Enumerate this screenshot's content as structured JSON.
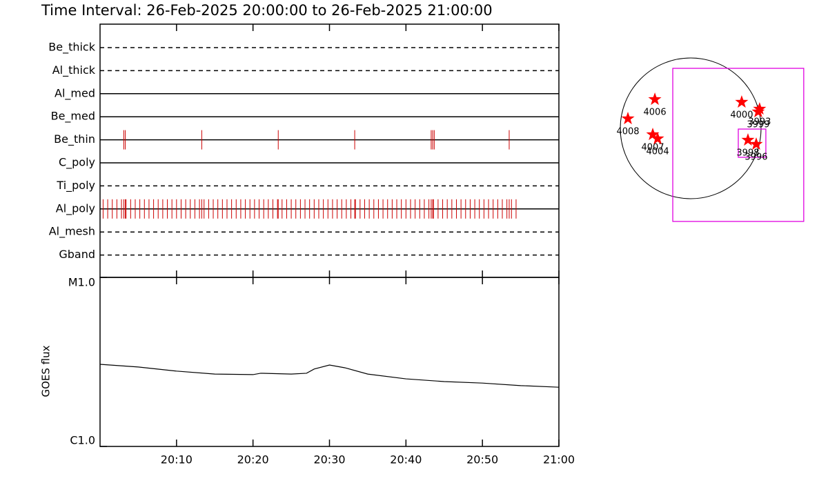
{
  "chart_data": [
    {
      "type": "timeline",
      "title": "Time Interval: 26-Feb-2025 20:00:00 to 26-Feb-2025 21:00:00",
      "xlim": [
        0,
        60
      ],
      "color": "#cc0000",
      "rows": [
        {
          "name": "Be_thick",
          "line_style": "dashed",
          "events": []
        },
        {
          "name": "Al_thick",
          "line_style": "dashed",
          "events": []
        },
        {
          "name": "Al_med",
          "line_style": "solid",
          "events": []
        },
        {
          "name": "Be_med",
          "line_style": "solid",
          "events": []
        },
        {
          "name": "Be_thin",
          "line_style": "solid",
          "events": [
            3.1,
            3.3,
            13.3,
            23.3,
            33.3,
            43.3,
            43.5,
            43.7,
            53.5
          ]
        },
        {
          "name": "C_poly",
          "line_style": "solid",
          "events": []
        },
        {
          "name": "Ti_poly",
          "line_style": "dashed",
          "events": []
        },
        {
          "name": "Al_poly",
          "line_style": "solid",
          "events": [
            0.4,
            1.0,
            1.6,
            2.2,
            2.8,
            3.1,
            3.3,
            3.4,
            4.0,
            4.6,
            5.2,
            5.8,
            6.4,
            7.0,
            7.6,
            8.2,
            8.8,
            9.4,
            10.0,
            10.6,
            11.2,
            11.8,
            12.4,
            13.0,
            13.3,
            13.6,
            14.2,
            14.8,
            15.4,
            16.0,
            16.6,
            17.2,
            17.8,
            18.4,
            19.0,
            19.6,
            20.2,
            20.8,
            21.4,
            22.0,
            22.6,
            23.2,
            23.3,
            23.8,
            24.4,
            25.0,
            25.6,
            26.2,
            26.8,
            27.4,
            28.0,
            28.6,
            29.2,
            29.8,
            30.4,
            31.0,
            31.6,
            32.2,
            32.8,
            33.3,
            33.4,
            34.0,
            34.6,
            35.2,
            35.8,
            36.4,
            37.0,
            37.6,
            38.2,
            38.8,
            39.4,
            40.0,
            40.6,
            41.2,
            41.8,
            42.4,
            43.0,
            43.3,
            43.5,
            43.6,
            44.2,
            44.8,
            45.4,
            46.0,
            46.6,
            47.2,
            47.8,
            48.4,
            49.0,
            49.6,
            50.2,
            50.8,
            51.4,
            52.0,
            52.6,
            53.2,
            53.5,
            53.8,
            54.4
          ]
        },
        {
          "name": "Al_mesh",
          "line_style": "dashed",
          "events": []
        },
        {
          "name": "Gband",
          "line_style": "dashed",
          "events": []
        }
      ]
    },
    {
      "type": "line",
      "ylabel": "GOES flux",
      "color": "#000000",
      "log_y": true,
      "x": [
        0,
        5,
        10,
        15,
        20,
        21,
        25,
        27,
        28,
        30,
        32,
        35,
        40,
        45,
        50,
        55,
        60
      ],
      "values": [
        3.06e-06,
        2.95e-06,
        2.79e-06,
        2.68e-06,
        2.66e-06,
        2.71e-06,
        2.68e-06,
        2.71e-06,
        2.87e-06,
        3.03e-06,
        2.92e-06,
        2.68e-06,
        2.51e-06,
        2.42e-06,
        2.37e-06,
        2.29e-06,
        2.24e-06
      ],
      "xlim": [
        0,
        60
      ],
      "xticks": [
        {
          "value": 10,
          "label": "20:10"
        },
        {
          "value": 20,
          "label": "20:20"
        },
        {
          "value": 30,
          "label": "20:30"
        },
        {
          "value": 40,
          "label": "20:40"
        },
        {
          "value": 50,
          "label": "20:50"
        },
        {
          "value": 60,
          "label": "21:00"
        }
      ],
      "ylim": [
        1e-06,
        1e-05
      ],
      "yticks": [
        {
          "value": 1e-06,
          "label": "C1.0"
        },
        {
          "value": 1e-05,
          "label": "M1.0"
        }
      ]
    },
    {
      "type": "map",
      "solar_radius": 970,
      "color": "#ff0000",
      "box_color": "#e000e0",
      "points": [
        {
          "label": "4006",
          "x": -494,
          "y": 399
        },
        {
          "label": "4008",
          "x": -865,
          "y": 133
        },
        {
          "label": "4000",
          "x": 703,
          "y": 361
        },
        {
          "label": "3993",
          "x": 950,
          "y": 266
        },
        {
          "label": "3999",
          "x": 931,
          "y": 228
        },
        {
          "label": "4007",
          "x": -523,
          "y": -86
        },
        {
          "label": "4004",
          "x": -456,
          "y": -143
        },
        {
          "label": "3998",
          "x": 789,
          "y": -162
        },
        {
          "label": "3996",
          "x": 903,
          "y": -219
        }
      ],
      "boxes": [
        {
          "x": [
            -247,
            1558
          ],
          "y": [
            -1283,
            827
          ]
        },
        {
          "x": [
            656,
            1036
          ],
          "y": [
            -399,
            -10
          ]
        }
      ]
    }
  ]
}
